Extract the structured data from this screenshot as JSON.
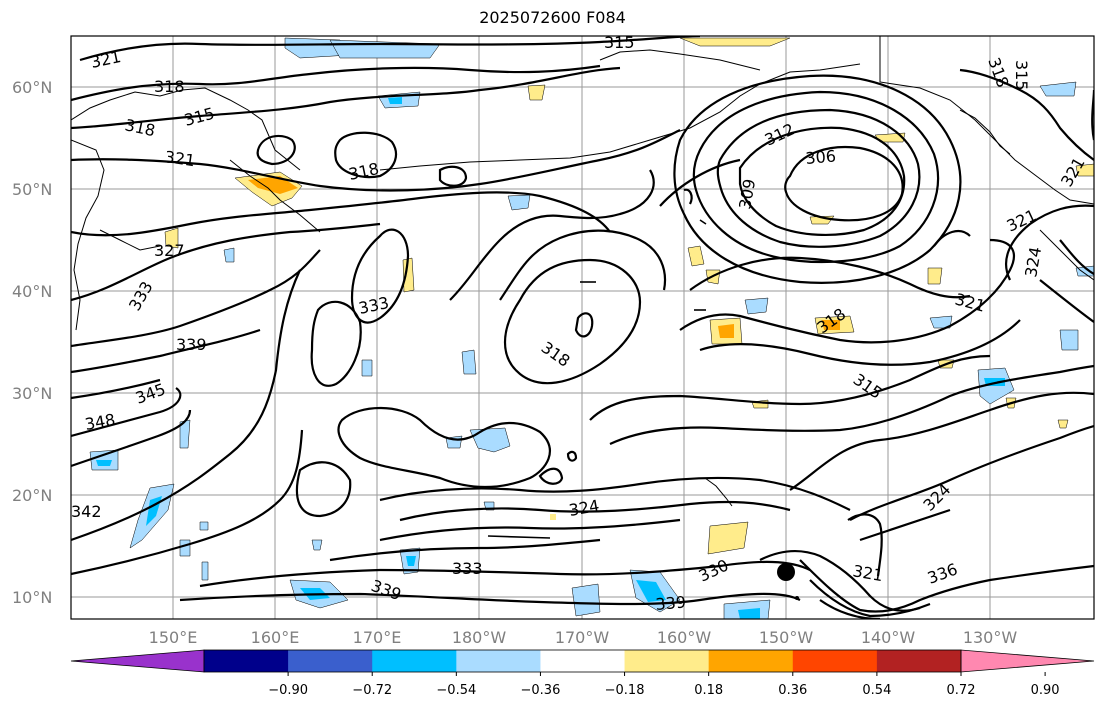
{
  "title": "2025072600 F084",
  "lat_labels": [
    "60°N",
    "50°N",
    "40°N",
    "30°N",
    "20°N",
    "10°N"
  ],
  "lon_labels": [
    "150°E",
    "160°E",
    "170°E",
    "180°W",
    "170°W",
    "160°W",
    "150°W",
    "140°W",
    "130°W"
  ],
  "colorbar": {
    "ticks": [
      "−0.90",
      "−0.72",
      "−0.54",
      "−0.36",
      "−0.18",
      "0.18",
      "0.36",
      "0.54",
      "0.72",
      "0.90"
    ],
    "colors": [
      "#9932cc",
      "#00008b",
      "#3a5fcd",
      "#00bfff",
      "#aadcff",
      "#ffffff",
      "#ffec8b",
      "#ffa500",
      "#ff4500",
      "#b22222",
      "#ff88b0"
    ]
  },
  "contour_labels": [
    "321",
    "318",
    "315",
    "318",
    "321",
    "318",
    "327",
    "333",
    "333",
    "339",
    "345",
    "348",
    "342",
    "339",
    "333",
    "324",
    "330",
    "339",
    "318",
    "312",
    "306",
    "309",
    "321",
    "318",
    "315",
    "321",
    "324",
    "336",
    "321",
    "324",
    "318",
    "315",
    "321",
    "315"
  ],
  "shading_colors": {
    "light_blue": "#aadcff",
    "blue": "#00bfff",
    "light_yellow": "#ffec8b",
    "orange": "#ffa500"
  }
}
